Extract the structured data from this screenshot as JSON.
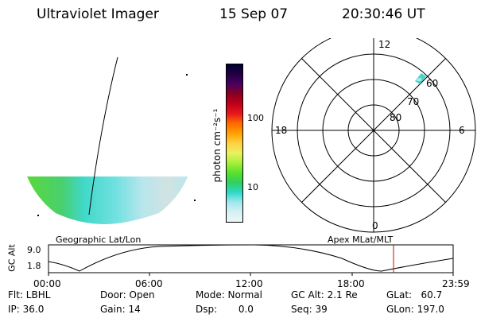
{
  "header": {
    "instrument": "Ultraviolet Imager",
    "date": "15 Sep 07",
    "time": "20:30:46 UT"
  },
  "colorbar": {
    "unit_label": "photon cm⁻²s⁻¹",
    "ticks": [
      "100",
      "10"
    ],
    "colors": [
      "#000033",
      "#220044",
      "#4a0060",
      "#880020",
      "#c00018",
      "#e8181c",
      "#ff6a00",
      "#ffa000",
      "#ffd040",
      "#eaf060",
      "#a8f03a",
      "#5ae02e",
      "#2fd05c",
      "#2ed8c8",
      "#9ee8ee",
      "#d6f0f2",
      "#eef6f6"
    ]
  },
  "geo_map": {
    "label": "Geographic Lat/Lon"
  },
  "polar_plot": {
    "label": "Apex MLat/MLT",
    "mlt_labels": {
      "top": "12",
      "left": "18",
      "right": "6",
      "bottom": "0"
    },
    "lat_labels": [
      "60",
      "70",
      "80"
    ]
  },
  "alt_panel": {
    "ylabel": "GC Alt",
    "yticks": [
      "9.0",
      "1.8"
    ],
    "xticks": [
      "00:00",
      "06:00",
      "12:00",
      "18:00",
      "23:59"
    ]
  },
  "status": {
    "flt": "Flt: LBHL",
    "ip": "IP: 36.0",
    "door": "Door: Open",
    "gain": "Gain: 14",
    "mode": "Mode: Normal",
    "dsp": "Dsp:       0.0",
    "gc_alt": "GC Alt: 2.1 Re",
    "seq": "Seq: 39",
    "glat": "GLat:   60.7",
    "glon": "GLon: 197.0"
  }
}
